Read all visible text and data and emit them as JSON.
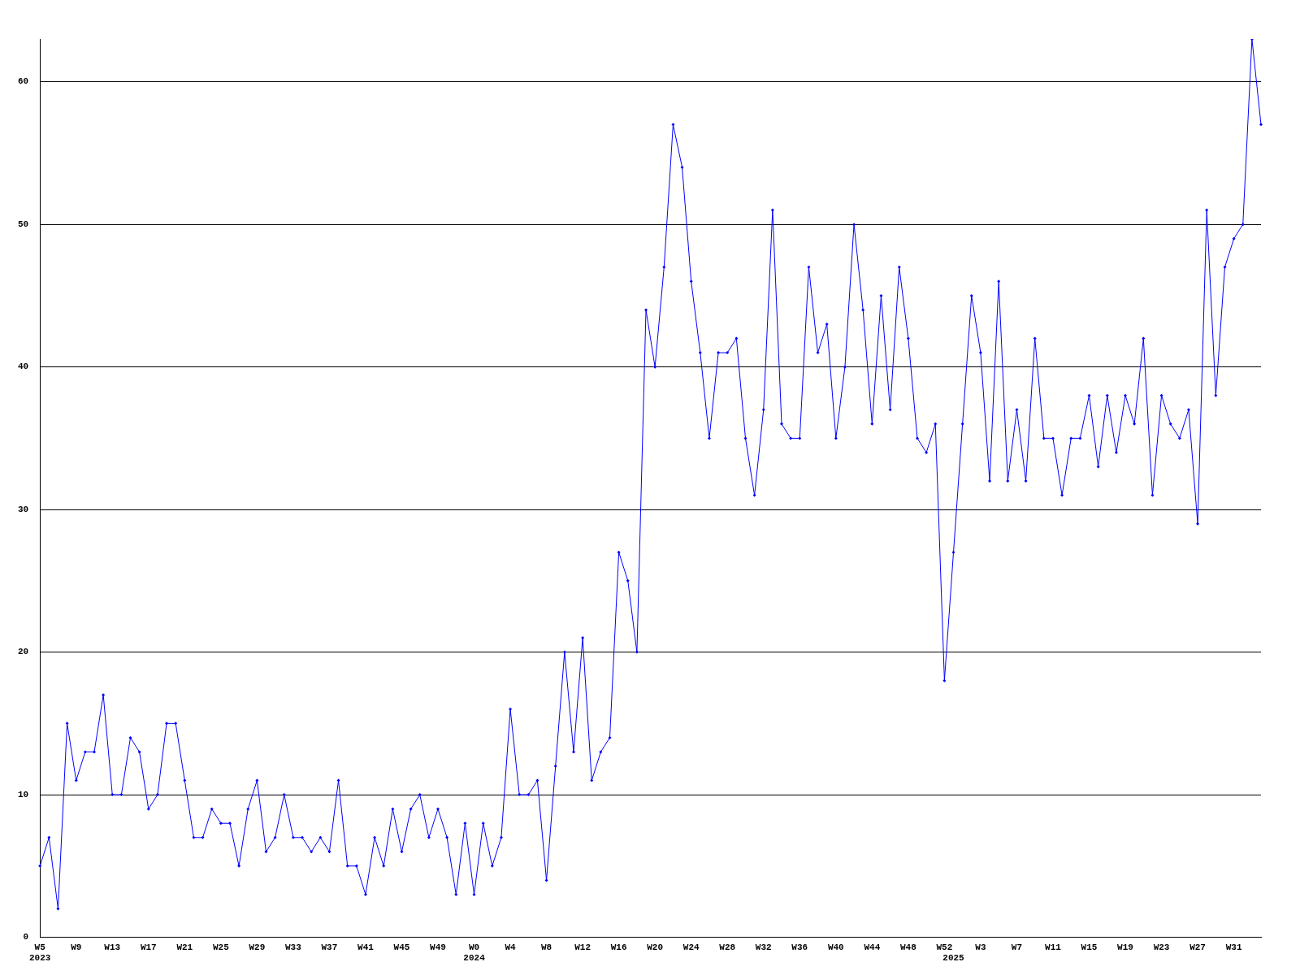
{
  "chart_data": {
    "type": "line",
    "categories": [
      "W5\n2023",
      null,
      null,
      null,
      "W9",
      null,
      null,
      null,
      "W13",
      null,
      null,
      null,
      "W17",
      null,
      null,
      null,
      "W21",
      null,
      null,
      null,
      "W25",
      null,
      null,
      null,
      "W29",
      null,
      null,
      null,
      "W33",
      null,
      null,
      null,
      "W37",
      null,
      null,
      null,
      "W41",
      null,
      null,
      null,
      "W45",
      null,
      null,
      null,
      "W49",
      null,
      null,
      null,
      "W0\n2024",
      null,
      null,
      null,
      "W4",
      null,
      null,
      null,
      "W8",
      null,
      null,
      null,
      "W12",
      null,
      null,
      null,
      "W16",
      null,
      null,
      null,
      "W20",
      null,
      null,
      null,
      "W24",
      null,
      null,
      null,
      "W28",
      null,
      null,
      null,
      "W32",
      null,
      null,
      null,
      "W36",
      null,
      null,
      null,
      "W40",
      null,
      null,
      null,
      "W44",
      null,
      null,
      null,
      "W48",
      null,
      null,
      null,
      "W52",
      "\n2025",
      null,
      null,
      "W3",
      null,
      null,
      null,
      "W7",
      null,
      null,
      null,
      "W11",
      null,
      null,
      null,
      "W15",
      null,
      null,
      null,
      "W19",
      null,
      null,
      null,
      "W23",
      null,
      null,
      null,
      "W27",
      null,
      null,
      null,
      "W31",
      null,
      null,
      null
    ],
    "series": [
      {
        "color": "#0000ff",
        "values": [
          5,
          7,
          2,
          15,
          11,
          13,
          13,
          17,
          10,
          10,
          14,
          13,
          9,
          10,
          15,
          15,
          11,
          7,
          7,
          9,
          8,
          8,
          5,
          9,
          11,
          6,
          7,
          10,
          7,
          7,
          6,
          7,
          6,
          11,
          5,
          5,
          3,
          7,
          5,
          9,
          6,
          9,
          10,
          7,
          9,
          7,
          3,
          8,
          3,
          8,
          5,
          7,
          16,
          10,
          10,
          11,
          4,
          12,
          20,
          13,
          21,
          11,
          13,
          14,
          27,
          25,
          20,
          44,
          40,
          47,
          57,
          54,
          46,
          41,
          35,
          41,
          41,
          42,
          35,
          31,
          37,
          51,
          36,
          35,
          35,
          47,
          41,
          43,
          35,
          40,
          50,
          44,
          36,
          45,
          37,
          47,
          42,
          35,
          34,
          36,
          18,
          27,
          36,
          45,
          41,
          32,
          46,
          32,
          37,
          32,
          42,
          35,
          35,
          31,
          35,
          35,
          38,
          33,
          38,
          34,
          38,
          36,
          42,
          31,
          38,
          36,
          35,
          37,
          29,
          51,
          38,
          47,
          49,
          50,
          63,
          57
        ]
      }
    ],
    "ylim": [
      0,
      63
    ],
    "yticks": [
      0,
      10,
      20,
      30,
      40,
      50,
      60
    ],
    "grid": "y",
    "legend": false,
    "marker": "diamond",
    "line_style": "solid"
  }
}
